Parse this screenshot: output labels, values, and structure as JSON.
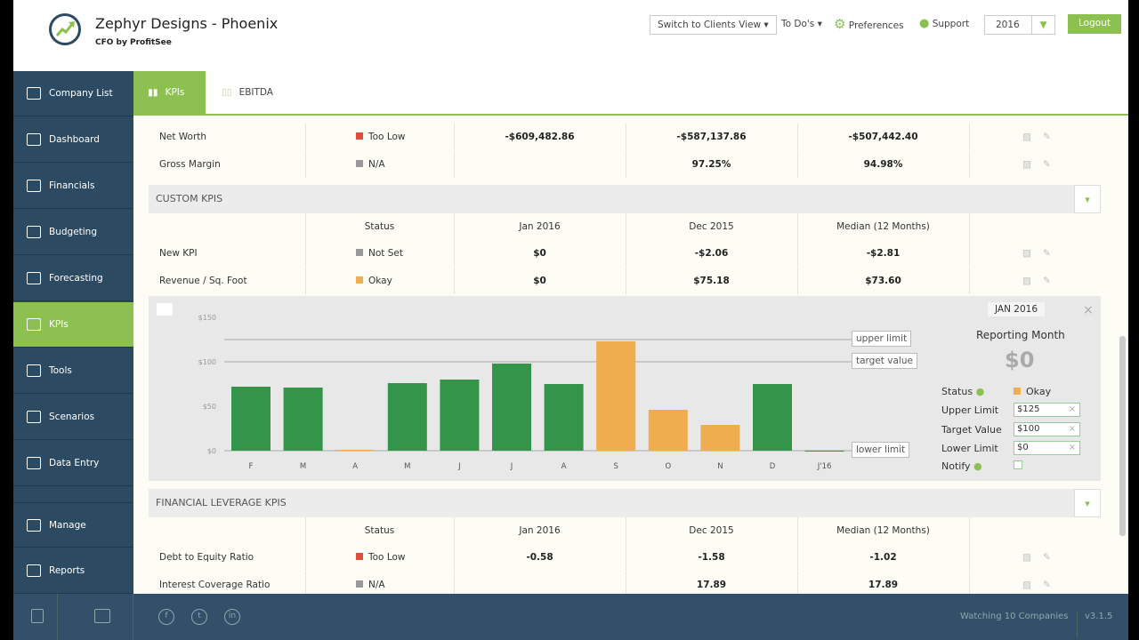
{
  "header": {
    "title": "Zephyr Designs - Phoenix",
    "subtitle": "CFO by ProfitSee",
    "switch_view": "Switch to Clients View ▾",
    "todos": "To Do's ▾",
    "preferences": "Preferences",
    "support": "Support",
    "year": "2016",
    "logout": "Logout"
  },
  "sidebar": {
    "items": [
      {
        "label": "Company List"
      },
      {
        "label": "Dashboard"
      },
      {
        "label": "Financials"
      },
      {
        "label": "Budgeting"
      },
      {
        "label": "Forecasting"
      },
      {
        "label": "KPIs"
      },
      {
        "label": "Tools"
      },
      {
        "label": "Scenarios"
      },
      {
        "label": "Data Entry"
      },
      {
        "label": "Manage"
      },
      {
        "label": "Reports"
      }
    ]
  },
  "tabs": [
    {
      "label": "KPIs"
    },
    {
      "label": "EBITDA"
    }
  ],
  "colors": {
    "accent": "#8cc152",
    "sidebar": "#2d4a63",
    "too_low": "#e04e39",
    "na": "#999999",
    "okay": "#f0ad4e",
    "bar_green": "#34944a"
  },
  "top_rows": [
    {
      "name": "Net Worth",
      "status": "Too Low",
      "status_color": "#e04e39",
      "jan": "-$609,482.86",
      "dec": "-$587,137.86",
      "median": "-$507,442.40"
    },
    {
      "name": "Gross Margin",
      "status": "N/A",
      "status_color": "#999999",
      "jan": "",
      "dec": "97.25%",
      "median": "94.98%"
    }
  ],
  "custom": {
    "title": "CUSTOM KPIS",
    "headers": [
      "Status",
      "Jan 2016",
      "Dec 2015",
      "Median (12 Months)"
    ],
    "rows": [
      {
        "name": "New KPI",
        "status": "Not Set",
        "status_color": "#999999",
        "jan": "$0",
        "dec": "-$2.06",
        "median": "-$2.81"
      },
      {
        "name": "Revenue / Sq. Foot",
        "status": "Okay",
        "status_color": "#f0ad4e",
        "jan": "$0",
        "dec": "$75.18",
        "median": "$73.60"
      }
    ]
  },
  "chart_data": {
    "type": "bar",
    "categories": [
      "F",
      "M",
      "A",
      "M",
      "J",
      "J",
      "A",
      "S",
      "O",
      "N",
      "D",
      "J'16"
    ],
    "values": [
      72,
      71,
      1,
      76,
      80,
      98,
      75,
      123,
      46,
      29,
      75,
      0
    ],
    "colors": [
      "#34944a",
      "#34944a",
      "#f0ad4e",
      "#34944a",
      "#34944a",
      "#34944a",
      "#34944a",
      "#f0ad4e",
      "#f0ad4e",
      "#f0ad4e",
      "#34944a",
      "#34944a"
    ],
    "yticks": [
      "$0",
      "$50",
      "$100",
      "$150"
    ],
    "ylim": [
      0,
      150
    ],
    "reference_lines": [
      {
        "label": "upper limit",
        "value": 125
      },
      {
        "label": "target value",
        "value": 100
      },
      {
        "label": "lower limit",
        "value": 0
      }
    ],
    "grid": false
  },
  "detail": {
    "month": "JAN 2016",
    "reporting_label": "Reporting Month",
    "value": "$0",
    "status_label": "Status",
    "status": "Okay",
    "upper_label": "Upper Limit",
    "upper": "$125",
    "target_label": "Target Value",
    "target": "$100",
    "lower_label": "Lower Limit",
    "lower": "$0",
    "notify_label": "Notify",
    "clear": "×",
    "close": "×"
  },
  "leverage": {
    "title": "FINANCIAL LEVERAGE KPIS",
    "headers": [
      "Status",
      "Jan 2016",
      "Dec 2015",
      "Median (12 Months)"
    ],
    "rows": [
      {
        "name": "Debt to Equity Ratio",
        "status": "Too Low",
        "status_color": "#e04e39",
        "jan": "-0.58",
        "dec": "-1.58",
        "median": "-1.02"
      },
      {
        "name": "Interest Coverage Ratio",
        "status": "N/A",
        "status_color": "#999999",
        "jan": "",
        "dec": "17.89",
        "median": "17.89"
      }
    ]
  },
  "footer": {
    "watching": "Watching 10 Companies",
    "version": "v3.1.5",
    "social": [
      "f",
      "t",
      "in"
    ]
  }
}
